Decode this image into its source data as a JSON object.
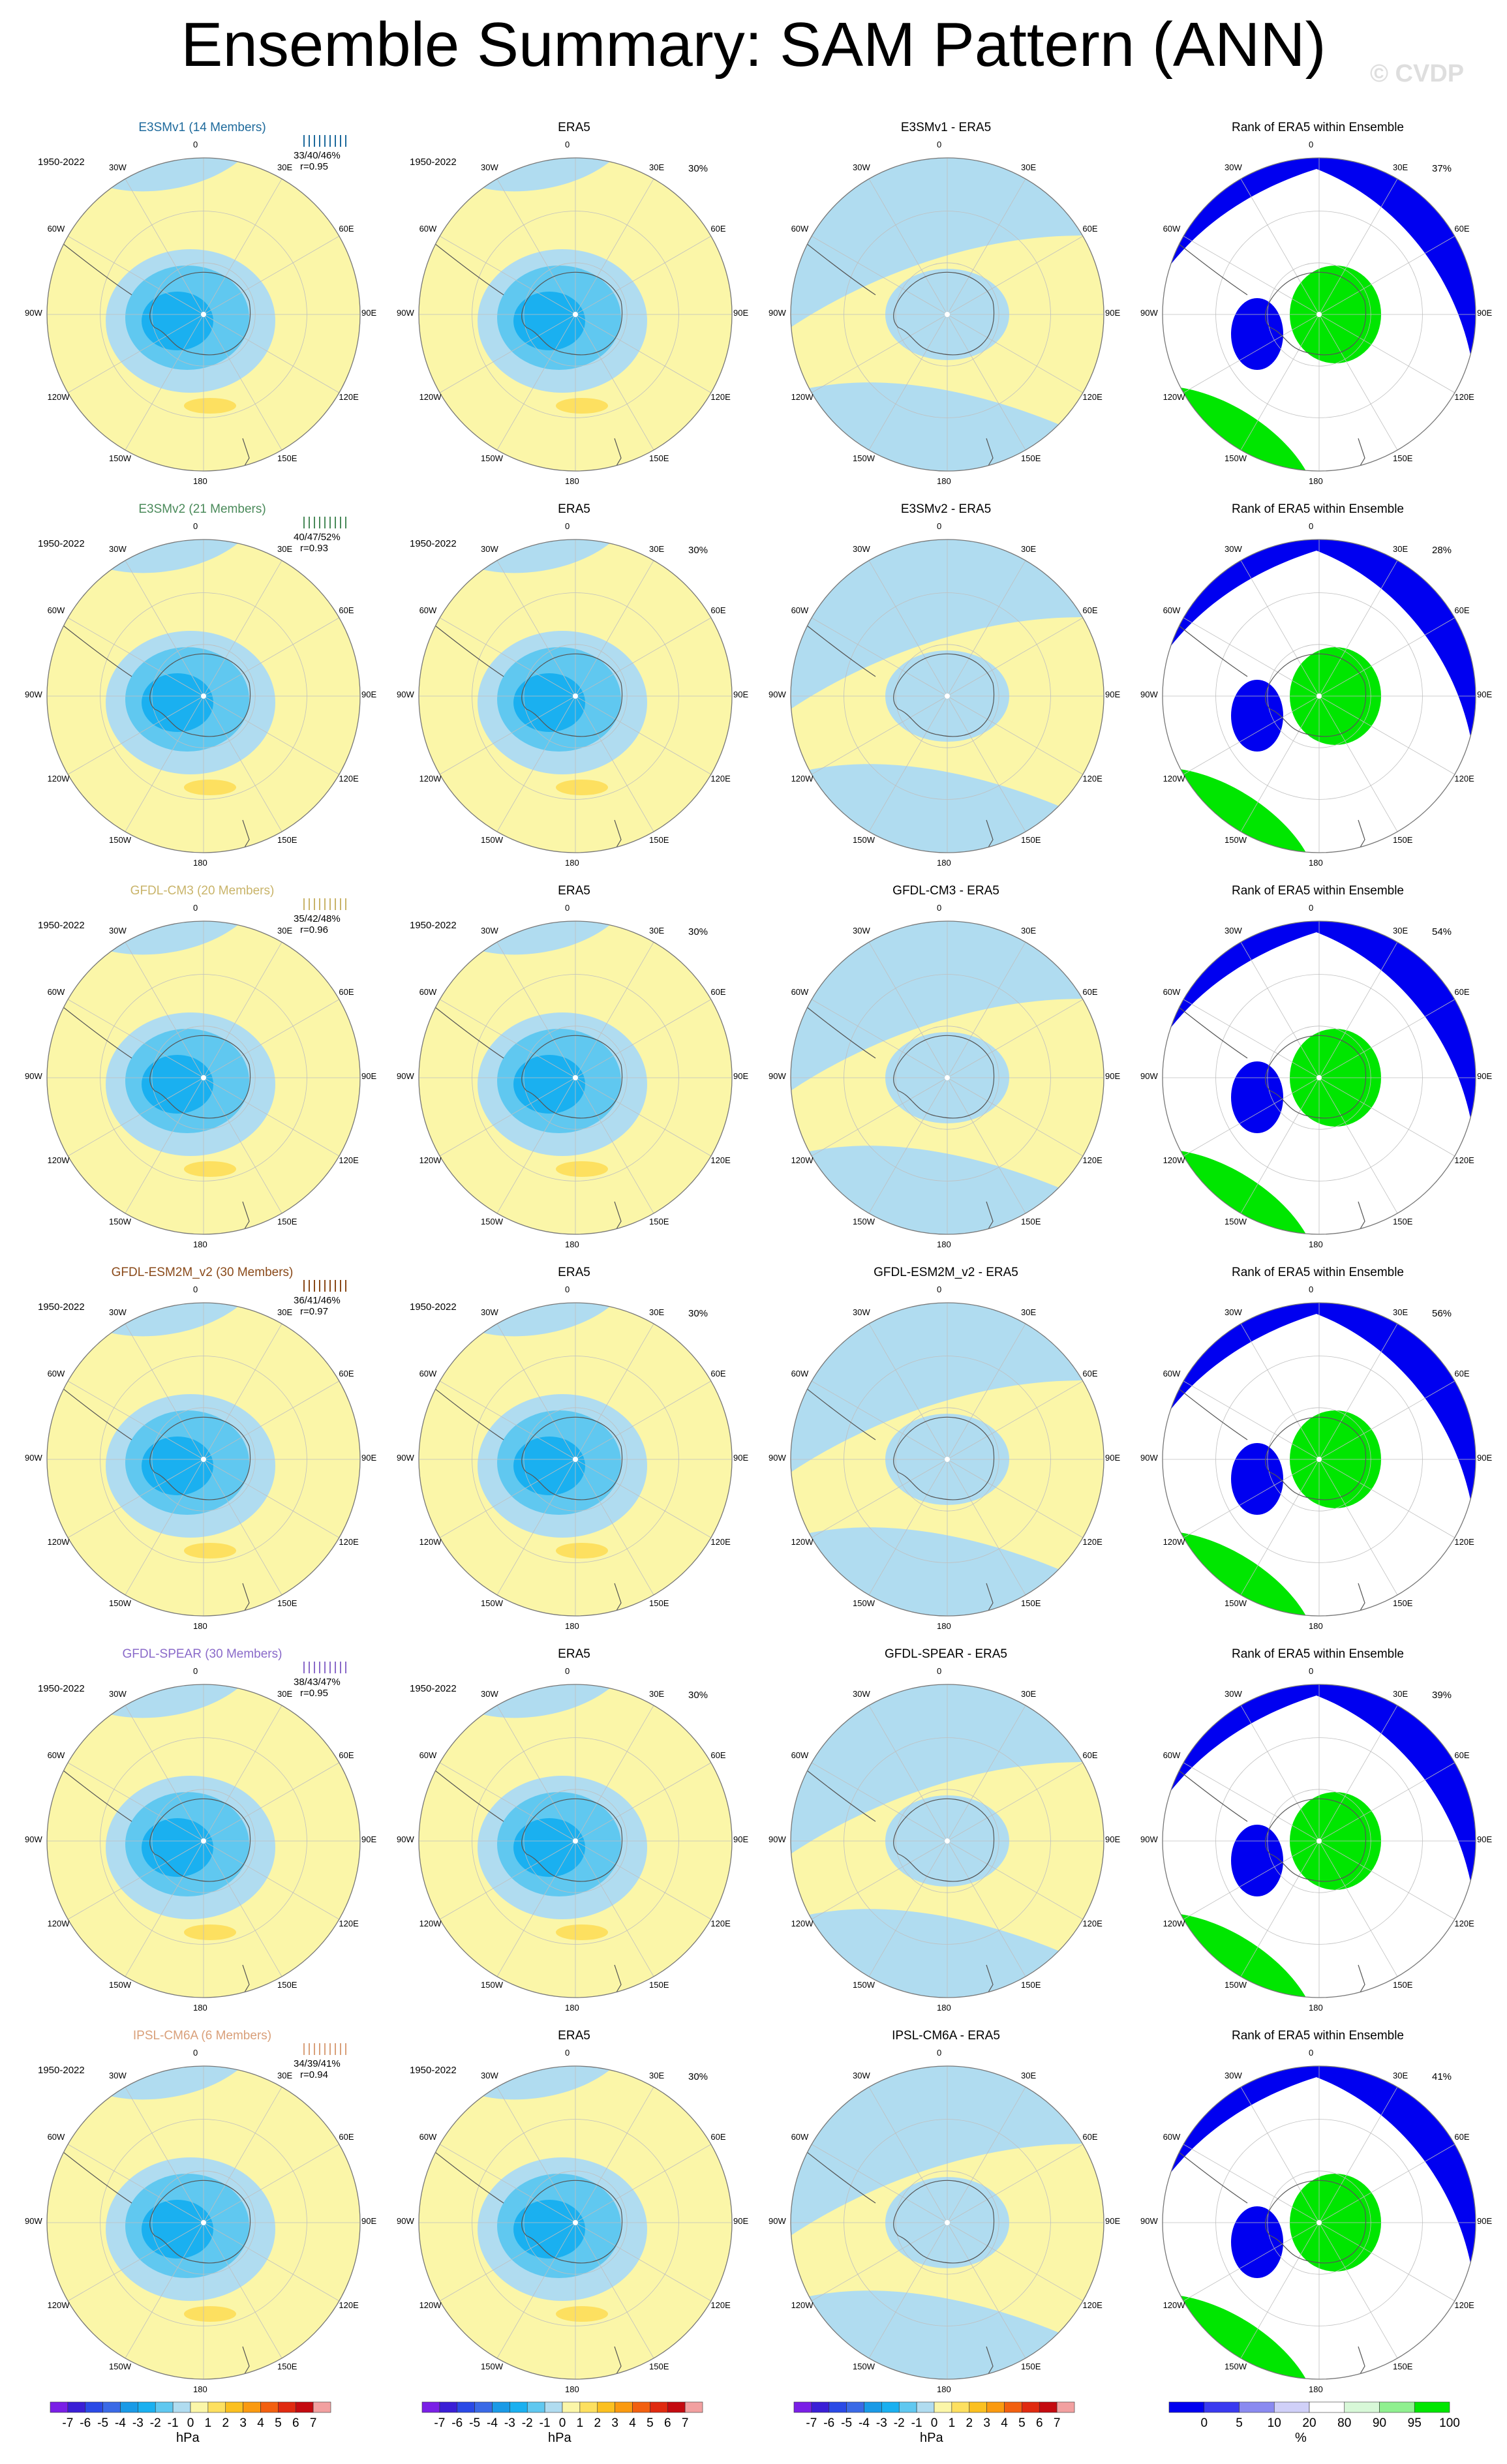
{
  "title": "Ensemble Summary: SAM Pattern (ANN)",
  "watermark": "© CVDP",
  "period": "1950-2022",
  "rank_panel_title": "Rank of ERA5 within Ensemble",
  "grid_labels": [
    "0",
    "30E",
    "60E",
    "90E",
    "120E",
    "150E",
    "180",
    "150W",
    "120W",
    "90W",
    "60W",
    "30W"
  ],
  "rows": [
    {
      "model": "E3SMv1",
      "members_title": "E3SMv1 (14 Members)",
      "title_color": "#1e6a9c",
      "stats": "33/40/46%",
      "corr": "r=0.95",
      "diff_title": "E3SMv1 - ERA5",
      "rank_pct": "37%",
      "tick_color": "#1e6a9c"
    },
    {
      "model": "E3SMv2",
      "members_title": "E3SMv2 (21 Members)",
      "title_color": "#4a8a5a",
      "stats": "40/47/52%",
      "corr": "r=0.93",
      "diff_title": "E3SMv2 - ERA5",
      "rank_pct": "28%",
      "tick_color": "#4a8a5a"
    },
    {
      "model": "GFDL-CM3",
      "members_title": "GFDL-CM3 (20 Members)",
      "title_color": "#c9b46a",
      "stats": "35/42/48%",
      "corr": "r=0.96",
      "diff_title": "GFDL-CM3 - ERA5",
      "rank_pct": "54%",
      "tick_color": "#c9b46a"
    },
    {
      "model": "GFDL-ESM2M_v2",
      "members_title": "GFDL-ESM2M_v2 (30 Members)",
      "title_color": "#8a4a1a",
      "stats": "36/41/46%",
      "corr": "r=0.97",
      "diff_title": "GFDL-ESM2M_v2 - ERA5",
      "rank_pct": "56%",
      "tick_color": "#8a4a1a"
    },
    {
      "model": "GFDL-SPEAR",
      "members_title": "GFDL-SPEAR (30 Members)",
      "title_color": "#8a6ac9",
      "stats": "38/43/47%",
      "corr": "r=0.95",
      "diff_title": "GFDL-SPEAR - ERA5",
      "rank_pct": "39%",
      "tick_color": "#8a6ac9"
    },
    {
      "model": "IPSL-CM6A",
      "members_title": "IPSL-CM6A (6 Members)",
      "title_color": "#d9a07a",
      "stats": "34/39/41%",
      "corr": "r=0.94",
      "diff_title": "IPSL-CM6A - ERA5",
      "rank_pct": "41%",
      "tick_color": "#d9a07a"
    }
  ],
  "era5_title": "ERA5",
  "colorbar_hpa": {
    "unit": "hPa",
    "labels": [
      "-7",
      "-6",
      "-5",
      "-4",
      "-3",
      "-2",
      "-1",
      "0",
      "1",
      "2",
      "3",
      "4",
      "5",
      "6",
      "7"
    ],
    "colors": [
      "#7a1fe6",
      "#3a1fd6",
      "#2a4ae6",
      "#3a6ae6",
      "#1a9ae6",
      "#1ab0f0",
      "#60c8f0",
      "#b0dcf0",
      "#fbf6a8",
      "#fde060",
      "#fbc020",
      "#fa9a10",
      "#f26010",
      "#e02a10",
      "#c40a10",
      "#f2a0a0"
    ]
  },
  "colorbar_rank": {
    "unit": "%",
    "labels": [
      "0",
      "5",
      "10",
      "20",
      "80",
      "90",
      "95",
      "100"
    ],
    "colors": [
      "#0000f0",
      "#3a3af0",
      "#8a8af0",
      "#d0d0f8",
      "#ffffff",
      "#d8f8d8",
      "#90f090",
      "#00e600"
    ]
  }
}
